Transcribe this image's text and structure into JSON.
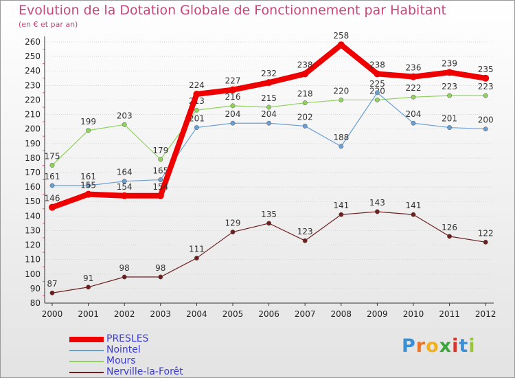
{
  "title": "Evolution de la Dotation Globale de Fonctionnement par Habitant",
  "subtitle": "(en € et par an)",
  "logo": "Proxiti",
  "chart_data": {
    "type": "line",
    "categories": [
      "2000",
      "2001",
      "2002",
      "2003",
      "2004",
      "2005",
      "2006",
      "2007",
      "2008",
      "2009",
      "2010",
      "2011",
      "2012"
    ],
    "ylim": [
      80,
      260
    ],
    "y_ticks": [
      80,
      90,
      100,
      110,
      120,
      130,
      140,
      150,
      160,
      170,
      180,
      190,
      200,
      210,
      220,
      230,
      240,
      250,
      260
    ],
    "grid": "horizontal",
    "legend_position": "bottom-left",
    "series": [
      {
        "name": "Nerville-la-Forêt",
        "color": "#6e1e1e",
        "values": [
          87,
          91,
          98,
          98,
          111,
          129,
          135,
          123,
          141,
          143,
          141,
          126,
          122
        ]
      },
      {
        "name": "Mours",
        "color": "#8fd35a",
        "values": [
          175,
          199,
          203,
          179,
          213,
          216,
          215,
          218,
          220,
          220,
          222,
          223,
          223
        ]
      },
      {
        "name": "Nointel",
        "color": "#6a9fd4",
        "values": [
          161,
          161,
          164,
          165,
          201,
          204,
          204,
          202,
          188,
          225,
          204,
          201,
          200
        ]
      },
      {
        "name": "PRESLES",
        "color": "#ee0000",
        "values": [
          146,
          155,
          154,
          154,
          224,
          227,
          232,
          238,
          258,
          238,
          236,
          239,
          235
        ]
      }
    ],
    "legend": [
      "PRESLES",
      "Nointel",
      "Mours",
      "Nerville-la-Forêt"
    ]
  }
}
